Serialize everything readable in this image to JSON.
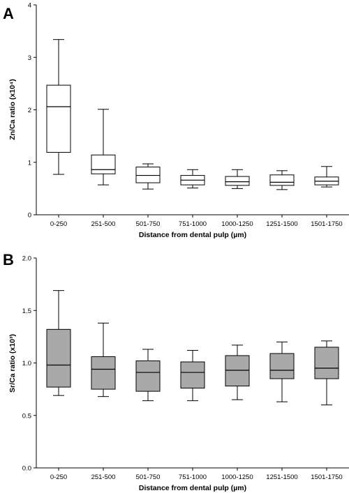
{
  "chart_data": [
    {
      "panel": "A",
      "type": "box",
      "xlabel": "Distance from dental pulp (µm)",
      "ylabel": "Zn/Ca ratio (x10⁴)",
      "ylim": [
        0,
        4
      ],
      "yticks": [
        "0",
        "1",
        "2",
        "3",
        "4"
      ],
      "fill": "#ffffff",
      "categories": [
        "0-250",
        "251-500",
        "501-750",
        "751-1000",
        "1000-1250",
        "1251-1500",
        "1501-1750"
      ],
      "boxes": [
        {
          "min": 0.77,
          "q1": 1.19,
          "median": 2.06,
          "q3": 2.47,
          "max": 3.34
        },
        {
          "min": 0.57,
          "q1": 0.78,
          "median": 0.86,
          "q3": 1.14,
          "max": 2.01
        },
        {
          "min": 0.49,
          "q1": 0.61,
          "median": 0.75,
          "q3": 0.91,
          "max": 0.97
        },
        {
          "min": 0.51,
          "q1": 0.57,
          "median": 0.66,
          "q3": 0.75,
          "max": 0.86
        },
        {
          "min": 0.5,
          "q1": 0.56,
          "median": 0.63,
          "q3": 0.73,
          "max": 0.86
        },
        {
          "min": 0.48,
          "q1": 0.56,
          "median": 0.62,
          "q3": 0.76,
          "max": 0.84
        },
        {
          "min": 0.53,
          "q1": 0.57,
          "median": 0.64,
          "q3": 0.72,
          "max": 0.92
        }
      ]
    },
    {
      "panel": "B",
      "type": "box",
      "xlabel": "Distance from dental pulp (µm)",
      "ylabel": "Sr/Ca ratio (x10³)",
      "ylim": [
        0,
        2
      ],
      "yticks": [
        "0.0",
        "0.5",
        "1.0",
        "1.5",
        "2.0"
      ],
      "fill": "#a9a9a9",
      "categories": [
        "0-250",
        "251-500",
        "501-750",
        "751-1000",
        "1000-1250",
        "1251-1500",
        "1501-1750"
      ],
      "boxes": [
        {
          "min": 0.69,
          "q1": 0.77,
          "median": 0.98,
          "q3": 1.32,
          "max": 1.69
        },
        {
          "min": 0.68,
          "q1": 0.75,
          "median": 0.94,
          "q3": 1.06,
          "max": 1.38
        },
        {
          "min": 0.64,
          "q1": 0.73,
          "median": 0.91,
          "q3": 1.02,
          "max": 1.13
        },
        {
          "min": 0.64,
          "q1": 0.76,
          "median": 0.91,
          "q3": 1.01,
          "max": 1.12
        },
        {
          "min": 0.65,
          "q1": 0.78,
          "median": 0.93,
          "q3": 1.07,
          "max": 1.17
        },
        {
          "min": 0.63,
          "q1": 0.85,
          "median": 0.93,
          "q3": 1.09,
          "max": 1.2
        },
        {
          "min": 0.6,
          "q1": 0.85,
          "median": 0.95,
          "q3": 1.15,
          "max": 1.21
        }
      ]
    }
  ]
}
